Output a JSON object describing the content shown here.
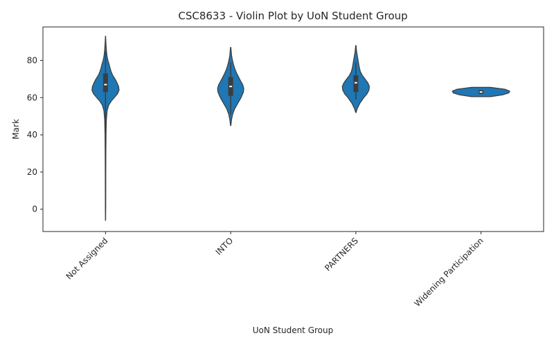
{
  "chart_data": {
    "type": "violin",
    "title": "CSC8633 - Violin Plot by UoN Student Group",
    "xlabel": "UoN Student Group",
    "ylabel": "Mark",
    "ylim": [
      -12,
      98
    ],
    "yticks": [
      0,
      20,
      40,
      60,
      80
    ],
    "grid": false,
    "legend": "none",
    "color": "#1f77b4",
    "box_color": "#3d3d3d",
    "categories": [
      "Not Assigned",
      "INTO",
      "PARTNERS",
      "Widening Participation"
    ],
    "violins": [
      {
        "category": "Not Assigned",
        "min": -6,
        "max": 93,
        "q1": 63,
        "median": 67,
        "q3": 73,
        "whisker_low": 0,
        "whisker_high": 85,
        "density": [
          [
            -6,
            0.005
          ],
          [
            0,
            0.01
          ],
          [
            10,
            0.012
          ],
          [
            20,
            0.015
          ],
          [
            30,
            0.02
          ],
          [
            40,
            0.03
          ],
          [
            48,
            0.05
          ],
          [
            53,
            0.1
          ],
          [
            56,
            0.2
          ],
          [
            58,
            0.35
          ],
          [
            60,
            0.55
          ],
          [
            62,
            0.75
          ],
          [
            64,
            0.85
          ],
          [
            66,
            0.82
          ],
          [
            68,
            0.72
          ],
          [
            70,
            0.6
          ],
          [
            72,
            0.45
          ],
          [
            74,
            0.35
          ],
          [
            76,
            0.28
          ],
          [
            78,
            0.22
          ],
          [
            80,
            0.15
          ],
          [
            82,
            0.1
          ],
          [
            84,
            0.07
          ],
          [
            86,
            0.05
          ],
          [
            88,
            0.035
          ],
          [
            90,
            0.02
          ],
          [
            93,
            0.005
          ]
        ]
      },
      {
        "category": "INTO",
        "min": 45,
        "max": 87,
        "q1": 61,
        "median": 66,
        "q3": 71,
        "whisker_low": 51,
        "whisker_high": 79,
        "density": [
          [
            45,
            0.01
          ],
          [
            48,
            0.05
          ],
          [
            51,
            0.12
          ],
          [
            54,
            0.25
          ],
          [
            57,
            0.45
          ],
          [
            60,
            0.65
          ],
          [
            63,
            0.8
          ],
          [
            65,
            0.82
          ],
          [
            67,
            0.75
          ],
          [
            69,
            0.62
          ],
          [
            71,
            0.5
          ],
          [
            73,
            0.38
          ],
          [
            75,
            0.28
          ],
          [
            77,
            0.2
          ],
          [
            79,
            0.14
          ],
          [
            81,
            0.09
          ],
          [
            83,
            0.05
          ],
          [
            85,
            0.03
          ],
          [
            87,
            0.01
          ]
        ]
      },
      {
        "category": "PARTNERS",
        "min": 52,
        "max": 88,
        "q1": 63,
        "median": 68,
        "q3": 72,
        "whisker_low": 59,
        "whisker_high": 79,
        "density": [
          [
            52,
            0.01
          ],
          [
            54,
            0.08
          ],
          [
            57,
            0.25
          ],
          [
            60,
            0.5
          ],
          [
            62,
            0.7
          ],
          [
            64,
            0.82
          ],
          [
            66,
            0.85
          ],
          [
            68,
            0.75
          ],
          [
            70,
            0.58
          ],
          [
            72,
            0.4
          ],
          [
            74,
            0.28
          ],
          [
            76,
            0.22
          ],
          [
            78,
            0.18
          ],
          [
            80,
            0.14
          ],
          [
            82,
            0.1
          ],
          [
            84,
            0.06
          ],
          [
            86,
            0.03
          ],
          [
            88,
            0.01
          ]
        ]
      },
      {
        "category": "Widening Participation",
        "min": 60.5,
        "max": 65.5,
        "q1": 62,
        "median": 63,
        "q3": 64,
        "whisker_low": 62,
        "whisker_high": 64,
        "width_scale": 3.0,
        "density": [
          [
            60.5,
            0.2
          ],
          [
            61.5,
            0.45
          ],
          [
            62.5,
            0.58
          ],
          [
            63.5,
            0.6
          ],
          [
            64.5,
            0.5
          ],
          [
            65.5,
            0.2
          ]
        ]
      }
    ]
  }
}
